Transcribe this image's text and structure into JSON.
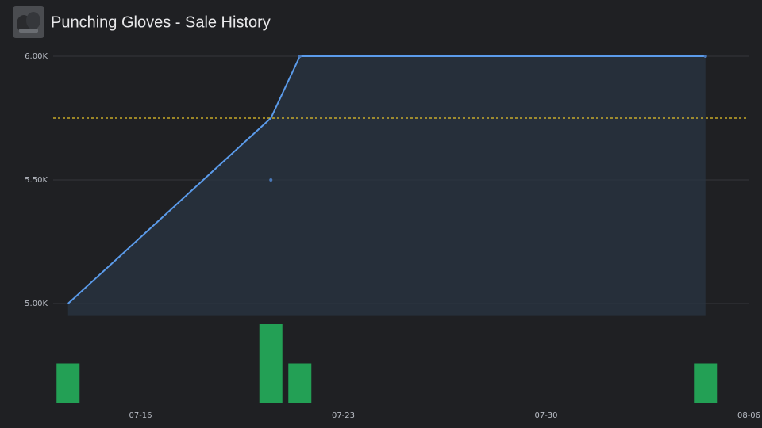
{
  "chart_data": {
    "type": "line",
    "title": "Punching Gloves - Sale History",
    "ylim": [
      4950,
      6000
    ],
    "yticks": [
      {
        "value": 5000,
        "label": "5.00K"
      },
      {
        "value": 5500,
        "label": "5.50K"
      },
      {
        "value": 6000,
        "label": "6.00K"
      }
    ],
    "xticks": [
      "07-16",
      "07-23",
      "07-30",
      "08-06"
    ],
    "grid": true,
    "line": {
      "color": "#5b9bea",
      "x": [
        "07-13",
        "07-20",
        "07-21",
        "08-04"
      ],
      "values": [
        5000,
        5750,
        6000,
        6000
      ]
    },
    "dots": {
      "color": "#4a78b8",
      "x": [
        "07-20",
        "07-21",
        "08-04"
      ],
      "values": [
        5500,
        6000,
        6000
      ]
    },
    "average": {
      "value": 5750,
      "color": "#e6c229"
    },
    "volume": {
      "color": "#23a055",
      "x": [
        "07-13",
        "07-20",
        "07-21",
        "08-04"
      ],
      "values": [
        1,
        2,
        1,
        1
      ]
    }
  }
}
